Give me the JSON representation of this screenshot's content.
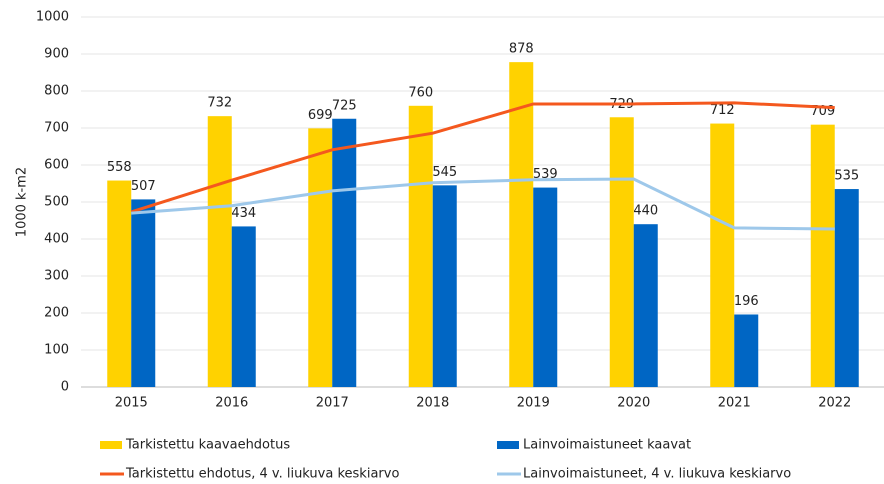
{
  "chart_data": {
    "type": "bar",
    "y_label": "1000 k-m2",
    "categories": [
      "2015",
      "2016",
      "2017",
      "2018",
      "2019",
      "2020",
      "2021",
      "2022"
    ],
    "series": [
      {
        "name": "Tarkistettu kaavaehdotus",
        "type": "bar",
        "color": "#ffd200",
        "values": [
          558,
          732,
          699,
          760,
          878,
          729,
          712,
          709
        ],
        "labels": true
      },
      {
        "name": "Lainvoimaistuneet kaavat",
        "type": "bar",
        "color": "#0066c4",
        "values": [
          507,
          434,
          725,
          545,
          539,
          440,
          196,
          535
        ],
        "labels": true
      },
      {
        "name": "Tarkistettu ehdotus, 4 v. liukuva keskiarvo",
        "type": "line",
        "color": "#f4581e",
        "values": [
          473,
          559,
          641,
          686,
          765,
          765,
          768,
          755
        ]
      },
      {
        "name": "Lainvoimaistuneet, 4 v. liukuva keskiarvo",
        "type": "line",
        "color": "#9ec8ea",
        "values": [
          470,
          490,
          530,
          552,
          560,
          562,
          430,
          427
        ]
      }
    ],
    "ylim": [
      0,
      1000
    ],
    "yticks": [
      0,
      100,
      200,
      300,
      400,
      500,
      600,
      700,
      800,
      900,
      1000
    ],
    "grid": true
  }
}
